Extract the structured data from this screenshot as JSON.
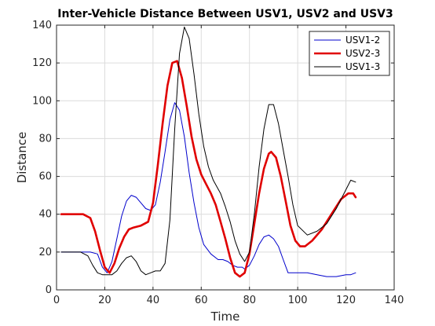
{
  "chart_data": {
    "type": "line",
    "title": "Inter-Vehicle Distance Between USV1, USV2 and USV3",
    "xlabel": "Time",
    "ylabel": "Distance",
    "xlim": [
      0,
      140
    ],
    "ylim": [
      0,
      140
    ],
    "xticks": [
      0,
      20,
      40,
      60,
      80,
      100,
      120,
      140
    ],
    "yticks": [
      0,
      20,
      40,
      60,
      80,
      100,
      120,
      140
    ],
    "grid": true,
    "legend": "top-right",
    "series": [
      {
        "name": "USV1-2",
        "color": "#0000cc",
        "x": [
          2,
          10,
          14,
          17,
          19,
          21,
          23,
          25,
          27,
          29,
          31,
          33,
          35,
          37,
          39,
          41,
          43,
          45,
          47,
          49,
          51,
          53,
          55,
          57,
          59,
          61,
          64,
          67,
          69,
          71,
          73,
          75,
          77,
          78,
          80,
          82,
          84,
          86,
          88,
          90,
          92,
          94,
          96,
          100,
          104,
          108,
          112,
          116,
          120,
          122,
          124
        ],
        "y": [
          20,
          20,
          20,
          19,
          12,
          9,
          15,
          27,
          39,
          47,
          50,
          49,
          46,
          43,
          42,
          45,
          57,
          73,
          90,
          99,
          95,
          81,
          62,
          46,
          33,
          24,
          19,
          16,
          16,
          15,
          13,
          12,
          12,
          11,
          13,
          18,
          24,
          28,
          29,
          27,
          23,
          16,
          9,
          9,
          9,
          8,
          7,
          7,
          8,
          8,
          9
        ]
      },
      {
        "name": "USV2-3",
        "color": "#e00000",
        "x": [
          2,
          8,
          11,
          14,
          16,
          18,
          20,
          22,
          24,
          26,
          28,
          30,
          32,
          35,
          38,
          40,
          42,
          44,
          46,
          48,
          50,
          52,
          54,
          56,
          58,
          60,
          62,
          64,
          66,
          68,
          70,
          72,
          74,
          76,
          78,
          80,
          82,
          84,
          86,
          88,
          89,
          91,
          93,
          95,
          97,
          99,
          101,
          103,
          106,
          110,
          114,
          118,
          121,
          123,
          124
        ],
        "y": [
          40,
          40,
          40,
          38,
          31,
          21,
          12,
          9,
          14,
          22,
          28,
          32,
          33,
          34,
          36,
          46,
          66,
          88,
          108,
          120,
          121,
          112,
          97,
          81,
          69,
          61,
          56,
          51,
          45,
          36,
          27,
          17,
          9,
          7,
          9,
          19,
          35,
          51,
          64,
          72,
          73,
          70,
          60,
          47,
          34,
          26,
          23,
          23,
          26,
          32,
          40,
          48,
          51,
          51,
          49
        ]
      },
      {
        "name": "USV1-3",
        "color": "#000000",
        "x": [
          2,
          10,
          13,
          15,
          17,
          19,
          21,
          23,
          25,
          27,
          29,
          31,
          33,
          35,
          37,
          39,
          41,
          43,
          45,
          47,
          49,
          51,
          53,
          55,
          57,
          59,
          61,
          63,
          65,
          68,
          70,
          72,
          74,
          76,
          78,
          80,
          82,
          84,
          86,
          88,
          90,
          92,
          94,
          96,
          98,
          100,
          104,
          108,
          112,
          116,
          120,
          122,
          124
        ],
        "y": [
          20,
          20,
          18,
          13,
          9,
          8,
          8,
          8,
          10,
          14,
          17,
          18,
          15,
          10,
          8,
          9,
          10,
          10,
          14,
          37,
          85,
          125,
          139,
          133,
          114,
          93,
          76,
          65,
          58,
          51,
          44,
          36,
          26,
          19,
          15,
          20,
          40,
          65,
          85,
          98,
          98,
          88,
          74,
          60,
          45,
          34,
          29,
          31,
          35,
          43,
          53,
          58,
          57
        ]
      }
    ]
  }
}
